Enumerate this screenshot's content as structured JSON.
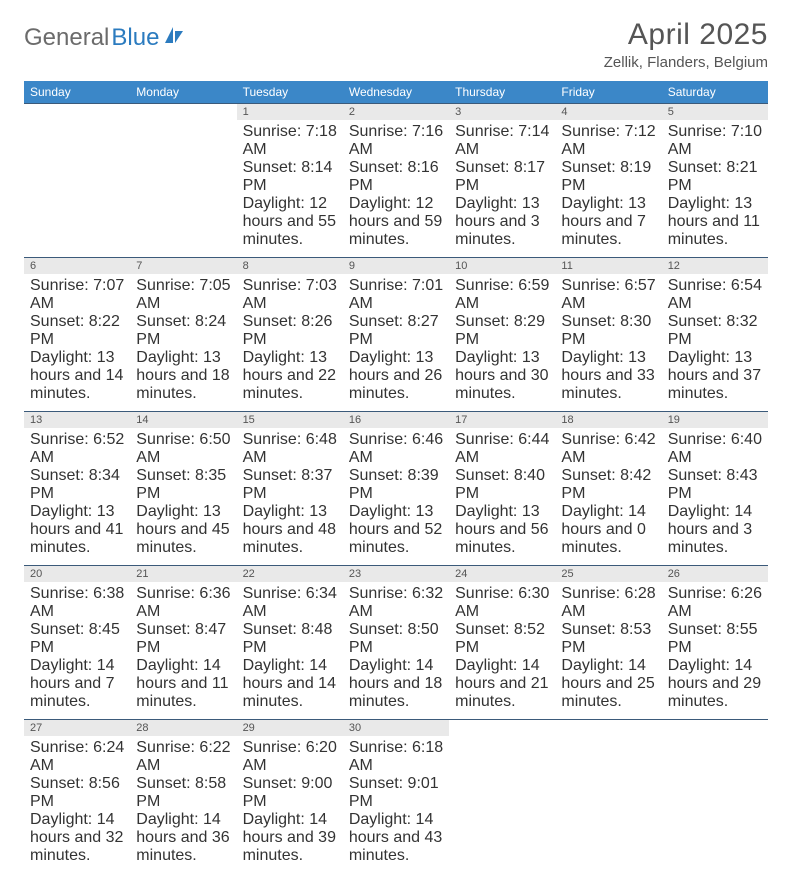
{
  "brand": {
    "part1": "General",
    "part2": "Blue"
  },
  "title": "April 2025",
  "location": "Zellik, Flanders, Belgium",
  "colors": {
    "header_bg": "#3b87c8",
    "header_text": "#ffffff",
    "daynum_bg": "#e9e9e9",
    "rule": "#3b5a7a",
    "logo_gray": "#6b6b6b",
    "logo_blue": "#2b7bbf"
  },
  "typography": {
    "title_fontsize": 30,
    "location_fontsize": 15,
    "dayheader_fontsize": 12,
    "cell_fontsize": 10.5
  },
  "day_headers": [
    "Sunday",
    "Monday",
    "Tuesday",
    "Wednesday",
    "Thursday",
    "Friday",
    "Saturday"
  ],
  "weeks": [
    [
      null,
      null,
      {
        "n": "1",
        "sunrise": "Sunrise: 7:18 AM",
        "sunset": "Sunset: 8:14 PM",
        "daylight": "Daylight: 12 hours and 55 minutes."
      },
      {
        "n": "2",
        "sunrise": "Sunrise: 7:16 AM",
        "sunset": "Sunset: 8:16 PM",
        "daylight": "Daylight: 12 hours and 59 minutes."
      },
      {
        "n": "3",
        "sunrise": "Sunrise: 7:14 AM",
        "sunset": "Sunset: 8:17 PM",
        "daylight": "Daylight: 13 hours and 3 minutes."
      },
      {
        "n": "4",
        "sunrise": "Sunrise: 7:12 AM",
        "sunset": "Sunset: 8:19 PM",
        "daylight": "Daylight: 13 hours and 7 minutes."
      },
      {
        "n": "5",
        "sunrise": "Sunrise: 7:10 AM",
        "sunset": "Sunset: 8:21 PM",
        "daylight": "Daylight: 13 hours and 11 minutes."
      }
    ],
    [
      {
        "n": "6",
        "sunrise": "Sunrise: 7:07 AM",
        "sunset": "Sunset: 8:22 PM",
        "daylight": "Daylight: 13 hours and 14 minutes."
      },
      {
        "n": "7",
        "sunrise": "Sunrise: 7:05 AM",
        "sunset": "Sunset: 8:24 PM",
        "daylight": "Daylight: 13 hours and 18 minutes."
      },
      {
        "n": "8",
        "sunrise": "Sunrise: 7:03 AM",
        "sunset": "Sunset: 8:26 PM",
        "daylight": "Daylight: 13 hours and 22 minutes."
      },
      {
        "n": "9",
        "sunrise": "Sunrise: 7:01 AM",
        "sunset": "Sunset: 8:27 PM",
        "daylight": "Daylight: 13 hours and 26 minutes."
      },
      {
        "n": "10",
        "sunrise": "Sunrise: 6:59 AM",
        "sunset": "Sunset: 8:29 PM",
        "daylight": "Daylight: 13 hours and 30 minutes."
      },
      {
        "n": "11",
        "sunrise": "Sunrise: 6:57 AM",
        "sunset": "Sunset: 8:30 PM",
        "daylight": "Daylight: 13 hours and 33 minutes."
      },
      {
        "n": "12",
        "sunrise": "Sunrise: 6:54 AM",
        "sunset": "Sunset: 8:32 PM",
        "daylight": "Daylight: 13 hours and 37 minutes."
      }
    ],
    [
      {
        "n": "13",
        "sunrise": "Sunrise: 6:52 AM",
        "sunset": "Sunset: 8:34 PM",
        "daylight": "Daylight: 13 hours and 41 minutes."
      },
      {
        "n": "14",
        "sunrise": "Sunrise: 6:50 AM",
        "sunset": "Sunset: 8:35 PM",
        "daylight": "Daylight: 13 hours and 45 minutes."
      },
      {
        "n": "15",
        "sunrise": "Sunrise: 6:48 AM",
        "sunset": "Sunset: 8:37 PM",
        "daylight": "Daylight: 13 hours and 48 minutes."
      },
      {
        "n": "16",
        "sunrise": "Sunrise: 6:46 AM",
        "sunset": "Sunset: 8:39 PM",
        "daylight": "Daylight: 13 hours and 52 minutes."
      },
      {
        "n": "17",
        "sunrise": "Sunrise: 6:44 AM",
        "sunset": "Sunset: 8:40 PM",
        "daylight": "Daylight: 13 hours and 56 minutes."
      },
      {
        "n": "18",
        "sunrise": "Sunrise: 6:42 AM",
        "sunset": "Sunset: 8:42 PM",
        "daylight": "Daylight: 14 hours and 0 minutes."
      },
      {
        "n": "19",
        "sunrise": "Sunrise: 6:40 AM",
        "sunset": "Sunset: 8:43 PM",
        "daylight": "Daylight: 14 hours and 3 minutes."
      }
    ],
    [
      {
        "n": "20",
        "sunrise": "Sunrise: 6:38 AM",
        "sunset": "Sunset: 8:45 PM",
        "daylight": "Daylight: 14 hours and 7 minutes."
      },
      {
        "n": "21",
        "sunrise": "Sunrise: 6:36 AM",
        "sunset": "Sunset: 8:47 PM",
        "daylight": "Daylight: 14 hours and 11 minutes."
      },
      {
        "n": "22",
        "sunrise": "Sunrise: 6:34 AM",
        "sunset": "Sunset: 8:48 PM",
        "daylight": "Daylight: 14 hours and 14 minutes."
      },
      {
        "n": "23",
        "sunrise": "Sunrise: 6:32 AM",
        "sunset": "Sunset: 8:50 PM",
        "daylight": "Daylight: 14 hours and 18 minutes."
      },
      {
        "n": "24",
        "sunrise": "Sunrise: 6:30 AM",
        "sunset": "Sunset: 8:52 PM",
        "daylight": "Daylight: 14 hours and 21 minutes."
      },
      {
        "n": "25",
        "sunrise": "Sunrise: 6:28 AM",
        "sunset": "Sunset: 8:53 PM",
        "daylight": "Daylight: 14 hours and 25 minutes."
      },
      {
        "n": "26",
        "sunrise": "Sunrise: 6:26 AM",
        "sunset": "Sunset: 8:55 PM",
        "daylight": "Daylight: 14 hours and 29 minutes."
      }
    ],
    [
      {
        "n": "27",
        "sunrise": "Sunrise: 6:24 AM",
        "sunset": "Sunset: 8:56 PM",
        "daylight": "Daylight: 14 hours and 32 minutes."
      },
      {
        "n": "28",
        "sunrise": "Sunrise: 6:22 AM",
        "sunset": "Sunset: 8:58 PM",
        "daylight": "Daylight: 14 hours and 36 minutes."
      },
      {
        "n": "29",
        "sunrise": "Sunrise: 6:20 AM",
        "sunset": "Sunset: 9:00 PM",
        "daylight": "Daylight: 14 hours and 39 minutes."
      },
      {
        "n": "30",
        "sunrise": "Sunrise: 6:18 AM",
        "sunset": "Sunset: 9:01 PM",
        "daylight": "Daylight: 14 hours and 43 minutes."
      },
      null,
      null,
      null
    ]
  ]
}
